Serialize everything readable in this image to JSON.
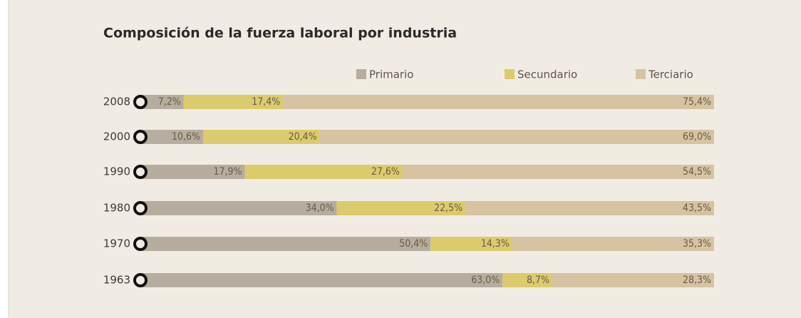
{
  "chart_data": {
    "type": "bar",
    "orientation": "horizontal",
    "stacked": true,
    "title": "Composición de la fuerza laboral por industria",
    "categories": [
      "2008",
      "2000",
      "1990",
      "1980",
      "1970",
      "1963"
    ],
    "xlim": [
      0,
      100
    ],
    "series": [
      {
        "name": "Primario",
        "color": "#b6ad9e",
        "values": [
          7.2,
          10.6,
          17.9,
          34.0,
          50.4,
          63.0
        ],
        "value_labels": [
          "7,2%",
          "10,6%",
          "17,9%",
          "34,0%",
          "50,4%",
          "63,0%"
        ]
      },
      {
        "name": "Secundario",
        "color": "#dccb6c",
        "values": [
          17.4,
          20.4,
          27.6,
          22.5,
          14.3,
          8.7
        ],
        "value_labels": [
          "17,4%",
          "20,4%",
          "27,6%",
          "22,5%",
          "14,3%",
          "8,7%"
        ]
      },
      {
        "name": "Terciario",
        "color": "#d5c3a2",
        "values": [
          75.4,
          69.0,
          54.5,
          43.5,
          35.3,
          28.3
        ],
        "value_labels": [
          "75,4%",
          "69,0%",
          "54,5%",
          "43,5%",
          "35,3%",
          "28,3%"
        ]
      }
    ]
  }
}
